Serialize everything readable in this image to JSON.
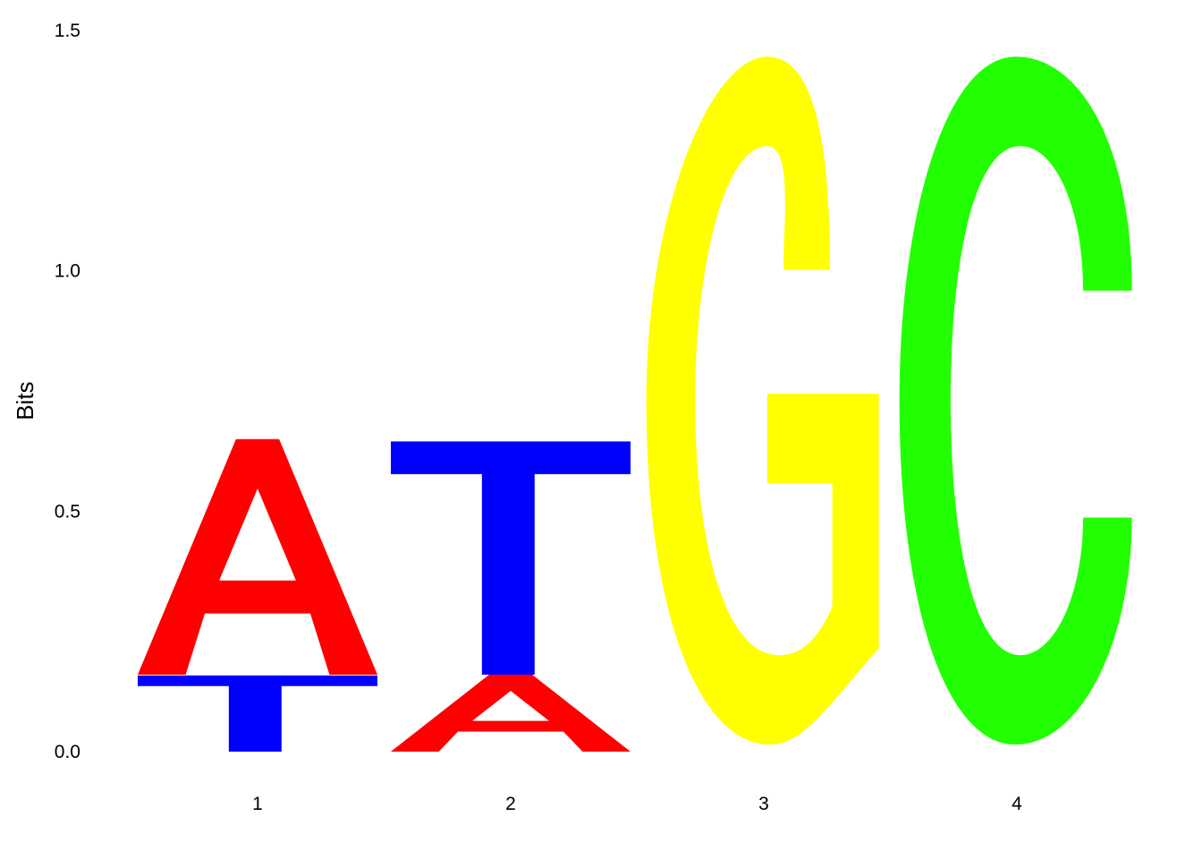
{
  "chart_data": {
    "type": "sequence-logo",
    "ylabel": "Bits",
    "ylim": [
      0,
      1.5
    ],
    "y_ticks": [
      "0.0",
      "0.5",
      "1.0",
      "1.5"
    ],
    "x_ticks": [
      "1",
      "2",
      "3",
      "4"
    ],
    "colors": {
      "A": "#ff0000",
      "T": "#0000ff",
      "G": "#ffff00",
      "C": "#22ff00"
    },
    "positions": [
      {
        "position": "1",
        "letters": [
          {
            "letter": "T",
            "bits": 0.16
          },
          {
            "letter": "A",
            "bits": 0.49
          }
        ]
      },
      {
        "position": "2",
        "letters": [
          {
            "letter": "A",
            "bits": 0.16
          },
          {
            "letter": "T",
            "bits": 0.49
          }
        ]
      },
      {
        "position": "3",
        "letters": [
          {
            "letter": "G",
            "bits": 1.46
          }
        ]
      },
      {
        "position": "4",
        "letters": [
          {
            "letter": "C",
            "bits": 1.46
          }
        ]
      }
    ]
  }
}
